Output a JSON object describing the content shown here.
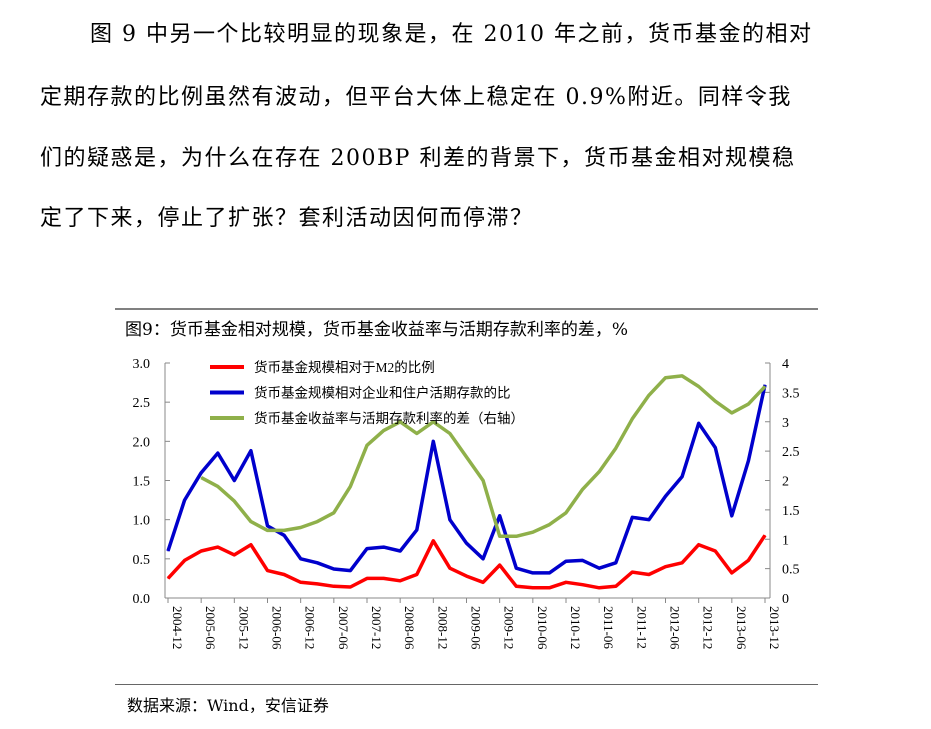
{
  "paragraph": {
    "lines": [
      "图 9 中另一个比较明显的现象是，在 2010 年之前，货币基金的相对",
      "定期存款的比例虽然有波动，但平台大体上稳定在 0.9%附近。同样令我",
      "们的疑惑是，为什么在存在 200BP 利差的背景下，货币基金相对规模稳",
      "定了下来，停止了扩张？套利活动因何而停滞？"
    ]
  },
  "chart_data": {
    "type": "line",
    "title": "图9：货币基金相对规模，货币基金收益率与活期存款利率的差，%",
    "source": "数据来源：Wind，安信证券",
    "x": [
      "2004-12",
      "2005-03",
      "2005-06",
      "2005-09",
      "2005-12",
      "2006-03",
      "2006-06",
      "2006-09",
      "2006-12",
      "2007-03",
      "2007-06",
      "2007-09",
      "2007-12",
      "2008-03",
      "2008-06",
      "2008-09",
      "2008-12",
      "2009-03",
      "2009-06",
      "2009-09",
      "2009-12",
      "2010-03",
      "2010-06",
      "2010-09",
      "2010-12",
      "2011-03",
      "2011-06",
      "2011-09",
      "2011-12",
      "2012-03",
      "2012-06",
      "2012-09",
      "2012-12",
      "2013-03",
      "2013-06",
      "2013-09",
      "2013-12"
    ],
    "x_tick_labels": [
      "2004-12",
      "2005-06",
      "2005-12",
      "2006-06",
      "2006-12",
      "2007-06",
      "2007-12",
      "2008-06",
      "2008-12",
      "2009-06",
      "2009-12",
      "2010-06",
      "2010-12",
      "2011-06",
      "2011-12",
      "2012-06",
      "2012-12",
      "2013-06",
      "2013-12"
    ],
    "y_left": {
      "range": [
        0,
        3.0
      ],
      "ticks": [
        "0.0",
        "0.5",
        "1.0",
        "1.5",
        "2.0",
        "2.5",
        "3.0"
      ]
    },
    "y_right": {
      "range": [
        0,
        4
      ],
      "ticks": [
        "0",
        "0.5",
        "1",
        "1.5",
        "2",
        "2.5",
        "3",
        "3.5",
        "4"
      ]
    },
    "grid": false,
    "legend_placement": "top-left",
    "series": [
      {
        "name": "货币基金规模相对于M2的比例",
        "color": "#ff0000",
        "axis": "left",
        "values": [
          0.25,
          0.48,
          0.6,
          0.65,
          0.55,
          0.68,
          0.35,
          0.3,
          0.2,
          0.18,
          0.15,
          0.14,
          0.25,
          0.25,
          0.22,
          0.3,
          0.73,
          0.38,
          0.28,
          0.2,
          0.42,
          0.15,
          0.13,
          0.13,
          0.2,
          0.17,
          0.13,
          0.15,
          0.33,
          0.3,
          0.4,
          0.45,
          0.68,
          0.6,
          0.32,
          0.48,
          0.8
        ]
      },
      {
        "name": "货币基金规模相对企业和住户活期存款的比",
        "color": "#0000cc",
        "axis": "left",
        "values": [
          0.6,
          1.25,
          1.6,
          1.85,
          1.5,
          1.88,
          0.92,
          0.8,
          0.5,
          0.45,
          0.37,
          0.35,
          0.63,
          0.65,
          0.6,
          0.87,
          2.0,
          1.0,
          0.7,
          0.5,
          1.05,
          0.38,
          0.32,
          0.32,
          0.47,
          0.48,
          0.38,
          0.45,
          1.03,
          1.0,
          1.3,
          1.55,
          2.23,
          1.92,
          1.05,
          1.75,
          2.72
        ]
      },
      {
        "name": "货币基金收益率与活期存款利率的差（右轴）",
        "color": "#8fb04a",
        "axis": "right",
        "values": [
          null,
          null,
          2.05,
          1.9,
          1.65,
          1.3,
          1.15,
          1.15,
          1.2,
          1.3,
          1.45,
          1.9,
          2.6,
          2.85,
          3.0,
          2.8,
          3.0,
          2.8,
          2.4,
          2.0,
          1.05,
          1.05,
          1.12,
          1.25,
          1.45,
          1.85,
          2.15,
          2.55,
          3.05,
          3.45,
          3.75,
          3.78,
          3.6,
          3.35,
          3.15,
          3.3,
          3.6
        ]
      }
    ]
  }
}
